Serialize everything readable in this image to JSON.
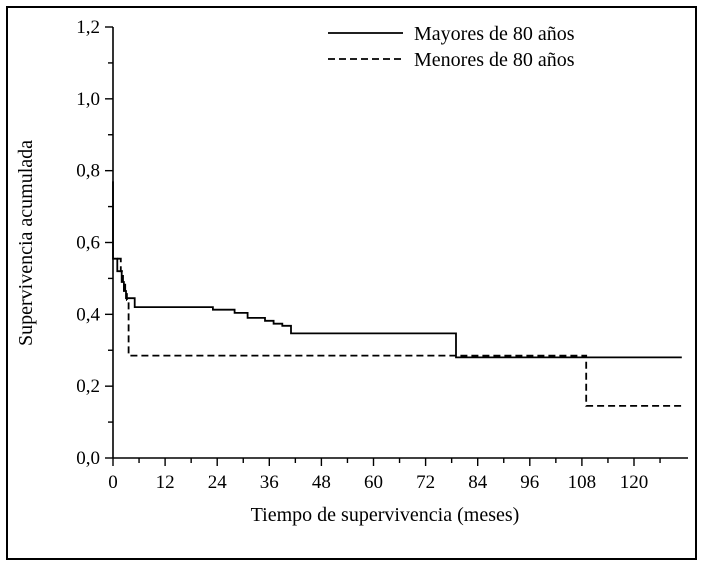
{
  "figure": {
    "background_color": "#ffffff",
    "frame_color": "#000000",
    "line_color": "#000000"
  },
  "chart_data": {
    "type": "line",
    "subtype": "kaplan-meier-step",
    "title": "",
    "xlabel": "Tiempo de supervivencia (meses)",
    "ylabel": "Supervivencia acumulada",
    "xlim": [
      0,
      132
    ],
    "ylim": [
      0,
      1.2
    ],
    "grid": false,
    "legend_position": "top-center",
    "xticks": [
      0,
      12,
      24,
      36,
      48,
      60,
      72,
      84,
      96,
      108,
      120
    ],
    "xticklabels": [
      "0",
      "12",
      "24",
      "36",
      "48",
      "60",
      "72",
      "84",
      "96",
      "108",
      "120"
    ],
    "yticks": [
      0,
      0.2,
      0.4,
      0.6,
      0.8,
      1.0,
      1.2
    ],
    "yticklabels": [
      "0,0",
      "0,2",
      "0,4",
      "0,6",
      "0,8",
      "1,0",
      "1,2"
    ],
    "series": [
      {
        "name": "Mayores de 80 años",
        "style": "solid",
        "color": "#000000",
        "points": [
          [
            0,
            0.77
          ],
          [
            0,
            0.555
          ],
          [
            1,
            0.555
          ],
          [
            1,
            0.52
          ],
          [
            2,
            0.52
          ],
          [
            2,
            0.49
          ],
          [
            2.5,
            0.49
          ],
          [
            2.5,
            0.465
          ],
          [
            3,
            0.465
          ],
          [
            3,
            0.445
          ],
          [
            5,
            0.445
          ],
          [
            5,
            0.42
          ],
          [
            23,
            0.42
          ],
          [
            23,
            0.413
          ],
          [
            28,
            0.413
          ],
          [
            28,
            0.404
          ],
          [
            31,
            0.404
          ],
          [
            31,
            0.39
          ],
          [
            35,
            0.39
          ],
          [
            35,
            0.382
          ],
          [
            37,
            0.382
          ],
          [
            37,
            0.374
          ],
          [
            39,
            0.374
          ],
          [
            39,
            0.368
          ],
          [
            41,
            0.368
          ],
          [
            41,
            0.347
          ],
          [
            43,
            0.347
          ],
          [
            79,
            0.347
          ],
          [
            79,
            0.28
          ],
          [
            131,
            0.28
          ]
        ]
      },
      {
        "name": "Menores de 80 años",
        "style": "dashed",
        "color": "#000000",
        "points": [
          [
            1,
            0.555
          ],
          [
            1.8,
            0.555
          ],
          [
            1.8,
            0.52
          ],
          [
            2.3,
            0.52
          ],
          [
            2.3,
            0.49
          ],
          [
            2.8,
            0.49
          ],
          [
            2.8,
            0.46
          ],
          [
            3.2,
            0.46
          ],
          [
            3.2,
            0.44
          ],
          [
            3.6,
            0.44
          ],
          [
            3.6,
            0.285
          ],
          [
            109,
            0.285
          ],
          [
            109,
            0.145
          ],
          [
            131,
            0.145
          ]
        ]
      }
    ]
  }
}
